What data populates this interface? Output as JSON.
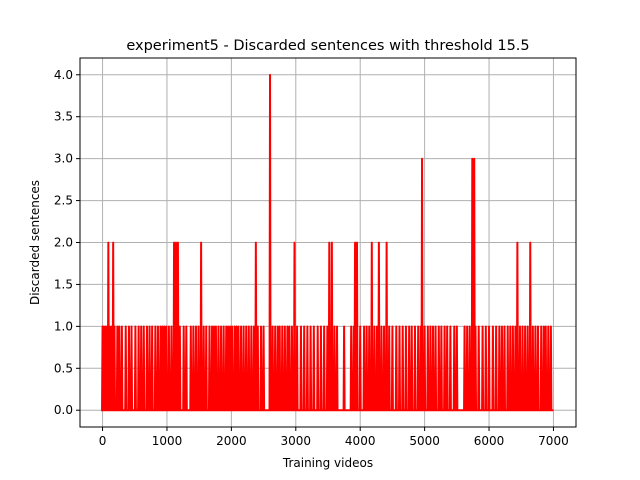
{
  "chart_data": {
    "type": "line",
    "title": "experiment5 - Discarded sentences with threshold 15.5",
    "xlabel": "Training videos",
    "ylabel": "Discarded sentences",
    "xlim": [
      -350,
      7350
    ],
    "ylim": [
      -0.2,
      4.2
    ],
    "xticks": [
      0,
      1000,
      2000,
      3000,
      4000,
      5000,
      6000,
      7000
    ],
    "yticks": [
      0.0,
      0.5,
      1.0,
      1.5,
      2.0,
      2.5,
      3.0,
      3.5,
      4.0
    ],
    "xtick_labels": [
      "0",
      "1000",
      "2000",
      "3000",
      "4000",
      "5000",
      "6000",
      "7000"
    ],
    "ytick_labels": [
      "0.0",
      "0.5",
      "1.0",
      "1.5",
      "2.0",
      "2.5",
      "3.0",
      "3.5",
      "4.0"
    ],
    "grid": true,
    "series": [
      {
        "color": "#ff0000",
        "baseline": 0,
        "x_range": [
          0,
          7000
        ],
        "nonzero_points": [
          [
            0,
            1
          ],
          [
            20,
            1
          ],
          [
            45,
            1
          ],
          [
            70,
            1
          ],
          [
            90,
            2
          ],
          [
            110,
            1
          ],
          [
            140,
            1
          ],
          [
            165,
            2
          ],
          [
            185,
            1
          ],
          [
            230,
            1
          ],
          [
            260,
            1
          ],
          [
            300,
            1
          ],
          [
            360,
            1
          ],
          [
            410,
            1
          ],
          [
            450,
            1
          ],
          [
            510,
            1
          ],
          [
            560,
            1
          ],
          [
            600,
            1
          ],
          [
            640,
            1
          ],
          [
            690,
            1
          ],
          [
            730,
            1
          ],
          [
            770,
            1
          ],
          [
            820,
            1
          ],
          [
            860,
            1
          ],
          [
            900,
            1
          ],
          [
            930,
            1
          ],
          [
            960,
            1
          ],
          [
            990,
            1
          ],
          [
            1030,
            1
          ],
          [
            1070,
            1
          ],
          [
            1110,
            2
          ],
          [
            1140,
            2
          ],
          [
            1170,
            2
          ],
          [
            1200,
            1
          ],
          [
            1260,
            1
          ],
          [
            1300,
            1
          ],
          [
            1370,
            1
          ],
          [
            1410,
            1
          ],
          [
            1450,
            1
          ],
          [
            1490,
            1
          ],
          [
            1530,
            2
          ],
          [
            1570,
            1
          ],
          [
            1610,
            1
          ],
          [
            1660,
            1
          ],
          [
            1700,
            1
          ],
          [
            1730,
            1
          ],
          [
            1760,
            1
          ],
          [
            1800,
            1
          ],
          [
            1840,
            1
          ],
          [
            1880,
            1
          ],
          [
            1920,
            1
          ],
          [
            1950,
            1
          ],
          [
            1980,
            1
          ],
          [
            2010,
            1
          ],
          [
            2050,
            1
          ],
          [
            2080,
            1
          ],
          [
            2110,
            1
          ],
          [
            2150,
            1
          ],
          [
            2190,
            1
          ],
          [
            2230,
            1
          ],
          [
            2270,
            1
          ],
          [
            2310,
            1
          ],
          [
            2350,
            1
          ],
          [
            2380,
            2
          ],
          [
            2410,
            1
          ],
          [
            2460,
            1
          ],
          [
            2500,
            1
          ],
          [
            2600,
            4
          ],
          [
            2640,
            1
          ],
          [
            2680,
            1
          ],
          [
            2720,
            1
          ],
          [
            2750,
            1
          ],
          [
            2790,
            1
          ],
          [
            2830,
            1
          ],
          [
            2870,
            1
          ],
          [
            2900,
            1
          ],
          [
            2940,
            1
          ],
          [
            2980,
            2
          ],
          [
            3020,
            1
          ],
          [
            3080,
            1
          ],
          [
            3130,
            1
          ],
          [
            3180,
            1
          ],
          [
            3230,
            1
          ],
          [
            3280,
            1
          ],
          [
            3340,
            1
          ],
          [
            3390,
            1
          ],
          [
            3440,
            1
          ],
          [
            3490,
            1
          ],
          [
            3520,
            2
          ],
          [
            3560,
            2
          ],
          [
            3600,
            1
          ],
          [
            3640,
            1
          ],
          [
            3750,
            1
          ],
          [
            3860,
            1
          ],
          [
            3900,
            1
          ],
          [
            3920,
            2
          ],
          [
            3950,
            2
          ],
          [
            4000,
            1
          ],
          [
            4060,
            1
          ],
          [
            4100,
            1
          ],
          [
            4140,
            1
          ],
          [
            4180,
            2
          ],
          [
            4220,
            1
          ],
          [
            4260,
            1
          ],
          [
            4290,
            2
          ],
          [
            4330,
            1
          ],
          [
            4370,
            1
          ],
          [
            4410,
            2
          ],
          [
            4450,
            1
          ],
          [
            4500,
            1
          ],
          [
            4560,
            1
          ],
          [
            4610,
            1
          ],
          [
            4660,
            1
          ],
          [
            4710,
            1
          ],
          [
            4760,
            1
          ],
          [
            4800,
            1
          ],
          [
            4850,
            1
          ],
          [
            4900,
            1
          ],
          [
            4940,
            1
          ],
          [
            4960,
            3
          ],
          [
            5000,
            1
          ],
          [
            5050,
            1
          ],
          [
            5090,
            1
          ],
          [
            5130,
            1
          ],
          [
            5170,
            1
          ],
          [
            5220,
            1
          ],
          [
            5260,
            1
          ],
          [
            5310,
            1
          ],
          [
            5350,
            1
          ],
          [
            5400,
            1
          ],
          [
            5460,
            1
          ],
          [
            5500,
            1
          ],
          [
            5620,
            1
          ],
          [
            5660,
            1
          ],
          [
            5700,
            1
          ],
          [
            5740,
            3
          ],
          [
            5770,
            3
          ],
          [
            5790,
            1
          ],
          [
            5840,
            1
          ],
          [
            5900,
            1
          ],
          [
            5950,
            1
          ],
          [
            6000,
            1
          ],
          [
            6060,
            1
          ],
          [
            6110,
            1
          ],
          [
            6160,
            1
          ],
          [
            6200,
            1
          ],
          [
            6240,
            1
          ],
          [
            6290,
            1
          ],
          [
            6330,
            1
          ],
          [
            6370,
            1
          ],
          [
            6410,
            1
          ],
          [
            6440,
            2
          ],
          [
            6480,
            1
          ],
          [
            6520,
            1
          ],
          [
            6560,
            1
          ],
          [
            6600,
            1
          ],
          [
            6640,
            2
          ],
          [
            6680,
            1
          ],
          [
            6720,
            1
          ],
          [
            6760,
            1
          ],
          [
            6810,
            1
          ],
          [
            6850,
            1
          ],
          [
            6880,
            1
          ],
          [
            6920,
            1
          ],
          [
            6960,
            1
          ]
        ]
      }
    ]
  }
}
